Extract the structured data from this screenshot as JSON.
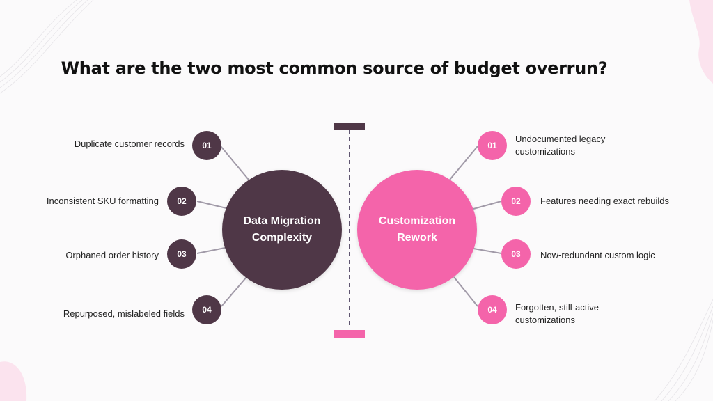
{
  "title": "What are the two most common source of budget overrun?",
  "colors": {
    "left_accent": "#4f3747",
    "right_accent": "#f464aa",
    "connector": "#a19aa8",
    "divider": "#5f5570"
  },
  "left": {
    "hub_label": "Data Migration Complexity",
    "items": [
      {
        "number": "01",
        "text": "Duplicate customer records"
      },
      {
        "number": "02",
        "text": "Inconsistent SKU formatting"
      },
      {
        "number": "03",
        "text": "Orphaned order history"
      },
      {
        "number": "04",
        "text": "Repurposed, mislabeled fields"
      }
    ]
  },
  "right": {
    "hub_label": "Customization Rework",
    "items": [
      {
        "number": "01",
        "text": "Undocumented legacy customizations"
      },
      {
        "number": "02",
        "text": "Features needing exact rebuilds"
      },
      {
        "number": "03",
        "text": "Now-redundant custom logic"
      },
      {
        "number": "04",
        "text": "Forgotten, still-active customizations"
      }
    ]
  }
}
